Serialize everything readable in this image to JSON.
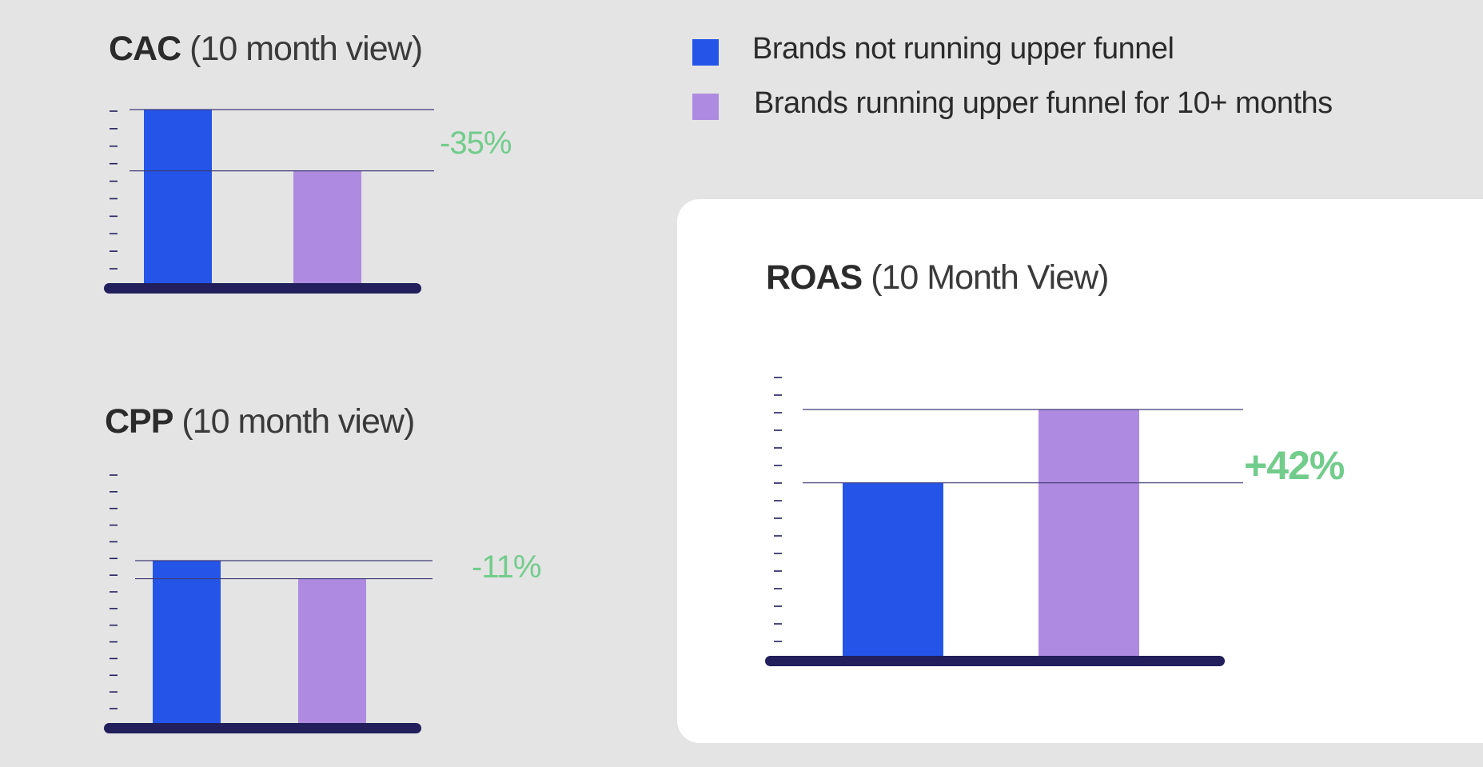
{
  "colors": {
    "background": "#e4e4e4",
    "card": "#ffffff",
    "series_not_running": "#2455e8",
    "series_running": "#ae8be0",
    "baseline": "#221f5c",
    "refline": "#3d3a78",
    "change": "#72cc8c"
  },
  "legend": {
    "items": [
      {
        "label": "Brands not running upper funnel",
        "color": "#2455e8"
      },
      {
        "label": "Brands running upper funnel for 10+ months",
        "color": "#ae8be0"
      }
    ]
  },
  "chart_data": [
    {
      "type": "bar",
      "title_bold": "CAC",
      "title_rest": "(10 month view)",
      "series": [
        {
          "name": "Brands not running upper funnel",
          "values": [
            100
          ]
        },
        {
          "name": "Brands running upper funnel for 10+ months",
          "values": [
            65
          ]
        }
      ],
      "change_label": "-35%",
      "ylim": [
        0,
        100
      ],
      "grid": false
    },
    {
      "type": "bar",
      "title_bold": "CPP",
      "title_rest": "(10 month view)",
      "series": [
        {
          "name": "Brands not running upper funnel",
          "values": [
            100
          ]
        },
        {
          "name": "Brands running upper funnel for 10+ months",
          "values": [
            89
          ]
        }
      ],
      "change_label": "-11%",
      "ylim": [
        0,
        100
      ],
      "grid": false
    },
    {
      "type": "bar",
      "title_bold": "ROAS",
      "title_rest": "(10 Month View)",
      "series": [
        {
          "name": "Brands not running upper funnel",
          "values": [
            100
          ]
        },
        {
          "name": "Brands running upper funnel for 10+ months",
          "values": [
            142
          ]
        }
      ],
      "change_label": "+42%",
      "ylim": [
        0,
        142
      ],
      "grid": false
    }
  ]
}
